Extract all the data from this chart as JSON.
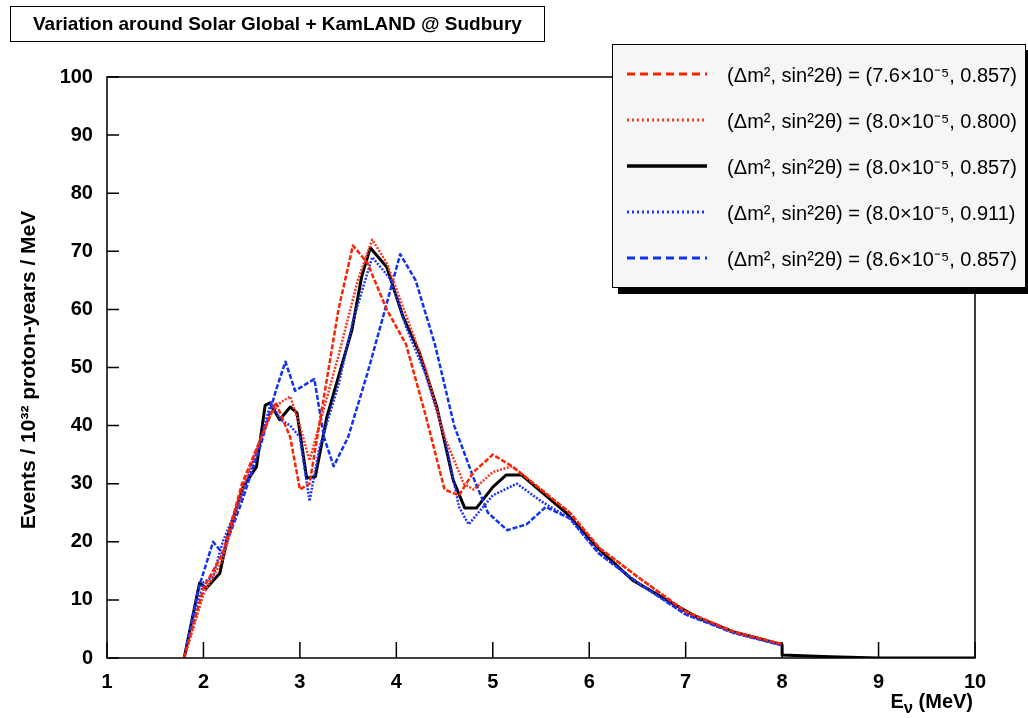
{
  "chart_data": {
    "type": "line",
    "title": "Variation around Solar Global + KamLAND @ Sudbury",
    "xlabel": "E$_{ν}$ (MeV)",
    "ylabel": "Events / 10³² proton-years / MeV",
    "xlim": [
      1,
      10
    ],
    "xticks": [
      1,
      2,
      3,
      4,
      5,
      6,
      7,
      8,
      9,
      10
    ],
    "ylim": [
      0,
      100
    ],
    "yticks": [
      0,
      10,
      20,
      30,
      40,
      50,
      60,
      70,
      80,
      90,
      100
    ],
    "grid": false,
    "legend": "top right",
    "marker": "none",
    "series": [
      {
        "name": "(Δm², sin²2θ) = (7.6×10⁻⁵, 0.857)",
        "color": "#ff2200",
        "line_style": "dashed",
        "x": [
          1.8,
          2.0,
          2.2,
          2.4,
          2.6,
          2.75,
          2.9,
          3.0,
          3.1,
          3.25,
          3.4,
          3.55,
          3.7,
          3.9,
          4.1,
          4.3,
          4.5,
          4.65,
          4.8,
          5.0,
          5.2,
          5.5,
          5.8,
          6.1,
          6.5,
          7.0,
          7.5,
          8.0
        ],
        "values": [
          0,
          12,
          18,
          30,
          38,
          44,
          38,
          29,
          30,
          45,
          60,
          71,
          68,
          60,
          54,
          42,
          29,
          28,
          32,
          35,
          33,
          29,
          25,
          19,
          14,
          8,
          4.5,
          2.4
        ]
      },
      {
        "name": "(Δm², sin²2θ) = (8.0×10⁻⁵, 0.800)",
        "color": "#ff3322",
        "line_style": "dotted",
        "x": [
          1.8,
          2.0,
          2.2,
          2.4,
          2.6,
          2.7,
          2.8,
          2.9,
          3.0,
          3.1,
          3.2,
          3.4,
          3.6,
          3.75,
          3.9,
          4.1,
          4.3,
          4.5,
          4.7,
          4.8,
          5.0,
          5.2,
          5.5,
          5.8,
          6.1,
          6.5,
          7.0,
          7.5,
          8.0
        ],
        "values": [
          0,
          11,
          17,
          29,
          38,
          42,
          44,
          45,
          40,
          34,
          40,
          52,
          65,
          72,
          68,
          59,
          50,
          38,
          30,
          29,
          32,
          33,
          29,
          25,
          19,
          14,
          8,
          4.5,
          2.4
        ]
      },
      {
        "name": "(Δm², sin²2θ) = (8.0×10⁻⁵, 0.857)",
        "color": "#000000",
        "line_style": "solid",
        "x": [
          1.8,
          1.96,
          2.03,
          2.17,
          2.25,
          2.41,
          2.55,
          2.64,
          2.69,
          2.79,
          2.9,
          2.97,
          3.07,
          3.16,
          3.28,
          3.41,
          3.54,
          3.64,
          3.73,
          3.9,
          4.07,
          4.24,
          4.42,
          4.59,
          4.71,
          4.83,
          5.0,
          5.14,
          5.3,
          5.76,
          6.11,
          6.45,
          6.8,
          7.12,
          7.5,
          8.0,
          8.0,
          8.5,
          9.0,
          10
        ],
        "values": [
          0,
          12.9,
          12,
          14.6,
          20.8,
          29.4,
          32.9,
          43.5,
          43.9,
          41,
          43.2,
          42.2,
          31,
          31.2,
          41.5,
          49,
          56.5,
          65.6,
          70.6,
          67.3,
          58.7,
          52.5,
          43.2,
          30.6,
          25.8,
          25.8,
          29.4,
          31.5,
          31.5,
          25,
          18.6,
          13.4,
          10,
          7,
          4.5,
          2.3,
          0.5,
          0.2,
          0,
          0
        ]
      },
      {
        "name": "(Δm², sin²2θ) = (8.0×10⁻⁵, 0.911)",
        "color": "#2233ff",
        "line_style": "dotted",
        "x": [
          1.8,
          2.0,
          2.1,
          2.2,
          2.4,
          2.6,
          2.7,
          2.8,
          2.9,
          3.0,
          3.1,
          3.2,
          3.4,
          3.55,
          3.75,
          3.95,
          4.1,
          4.3,
          4.5,
          4.65,
          4.75,
          4.85,
          5.0,
          5.25,
          5.5,
          5.8,
          6.1,
          6.5,
          7.0,
          7.5,
          8.0
        ],
        "values": [
          0,
          13,
          14,
          20,
          28,
          38,
          44,
          41,
          40,
          38,
          27,
          36,
          47,
          58,
          69,
          65,
          57,
          49,
          38,
          26,
          23,
          25,
          28,
          30,
          27,
          24,
          18,
          13,
          7.5,
          4.3,
          2.2
        ]
      },
      {
        "name": "(Δm², sin²2θ) = (8.6×10⁻⁵, 0.857)",
        "color": "#1133ee",
        "line_style": "dashed",
        "x": [
          1.8,
          1.95,
          2.1,
          2.2,
          2.4,
          2.6,
          2.75,
          2.85,
          2.95,
          3.05,
          3.15,
          3.25,
          3.35,
          3.5,
          3.7,
          3.85,
          4.04,
          4.2,
          4.4,
          4.6,
          4.8,
          4.95,
          5.15,
          5.35,
          5.55,
          5.8,
          6.1,
          6.5,
          7.0,
          7.5,
          8.0
        ],
        "values": [
          0,
          12,
          20,
          18,
          27,
          37,
          46,
          51,
          46,
          47,
          48,
          38,
          33,
          38,
          49,
          58,
          69.5,
          65,
          54,
          40,
          31,
          25,
          22,
          23,
          26,
          24,
          18,
          13,
          7.5,
          4.3,
          2.2
        ]
      }
    ]
  }
}
